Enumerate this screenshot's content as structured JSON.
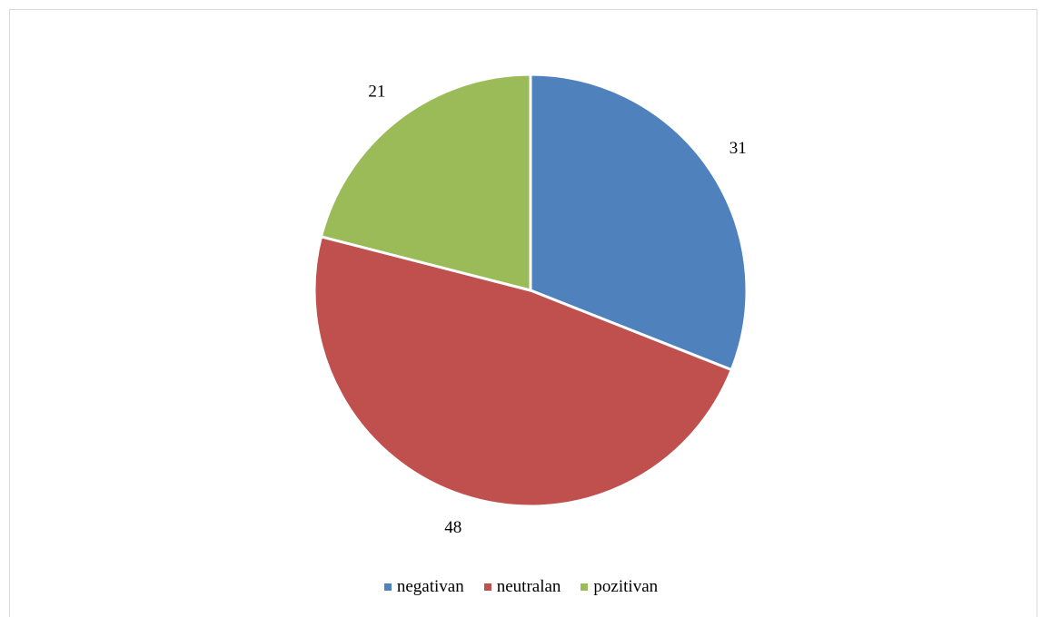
{
  "chart_data": {
    "type": "pie",
    "title": "",
    "categories": [
      "negativan",
      "neutralan",
      "pozitivan"
    ],
    "values": [
      31,
      48,
      21
    ],
    "colors": [
      "#4f81bd",
      "#c0504d",
      "#9bbb59"
    ],
    "start_angle_deg": 0,
    "direction": "clockwise",
    "data_labels": [
      "31",
      "48",
      "21"
    ],
    "legend_position": "bottom"
  }
}
